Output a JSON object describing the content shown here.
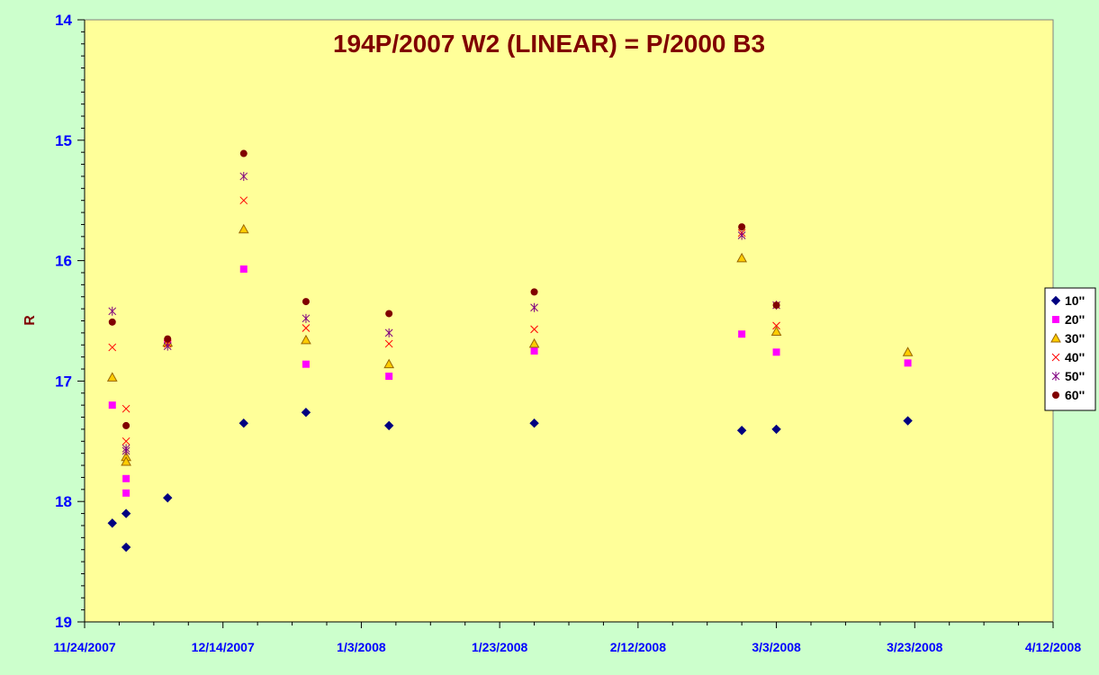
{
  "chart_data": {
    "type": "scatter",
    "title": "194P/2007 W2 (LINEAR) = P/2000 B3",
    "xlabel": "",
    "ylabel": "R",
    "x_ticks": [
      "11/24/2007",
      "12/14/2007",
      "1/3/2008",
      "1/23/2008",
      "2/12/2008",
      "3/3/2008",
      "3/23/2008",
      "4/12/2008"
    ],
    "xlim": [
      "2007-11-24",
      "2008-04-12"
    ],
    "ylim": [
      19,
      14
    ],
    "y_reversed": true,
    "y_ticks": [
      "14",
      "15",
      "16",
      "17",
      "18",
      "19"
    ],
    "grid": false,
    "legend_position": "right",
    "colors": {
      "page_background": "#ccffcc",
      "plot_background": "#ffff99",
      "title": "#800000",
      "tick_labels": "#0000ff"
    },
    "series": [
      {
        "name": "10''",
        "marker": "diamond",
        "color": "#000080",
        "points": [
          {
            "x": "2007-11-28",
            "y": 18.18
          },
          {
            "x": "2007-11-30",
            "y": 18.38
          },
          {
            "x": "2007-11-30",
            "y": 18.1
          },
          {
            "x": "2007-12-06",
            "y": 17.97
          },
          {
            "x": "2007-12-17",
            "y": 17.35
          },
          {
            "x": "2007-12-26",
            "y": 17.26
          },
          {
            "x": "2008-01-07",
            "y": 17.37
          },
          {
            "x": "2008-01-28",
            "y": 17.35
          },
          {
            "x": "2008-02-27",
            "y": 17.41
          },
          {
            "x": "2008-03-03",
            "y": 17.4
          },
          {
            "x": "2008-03-22",
            "y": 17.33
          }
        ]
      },
      {
        "name": "20''",
        "marker": "square",
        "color": "#ff00ff",
        "points": [
          {
            "x": "2007-11-28",
            "y": 17.2
          },
          {
            "x": "2007-11-30",
            "y": 17.81
          },
          {
            "x": "2007-11-30",
            "y": 17.93
          },
          {
            "x": "2007-12-06",
            "y": 16.68
          },
          {
            "x": "2007-12-17",
            "y": 16.07
          },
          {
            "x": "2007-12-26",
            "y": 16.86
          },
          {
            "x": "2008-01-07",
            "y": 16.96
          },
          {
            "x": "2008-01-28",
            "y": 16.75
          },
          {
            "x": "2008-02-27",
            "y": 16.61
          },
          {
            "x": "2008-03-03",
            "y": 16.76
          },
          {
            "x": "2008-03-22",
            "y": 16.85
          }
        ]
      },
      {
        "name": "30''",
        "marker": "triangle",
        "color": "#ffcc00",
        "points": [
          {
            "x": "2007-11-28",
            "y": 16.97
          },
          {
            "x": "2007-11-30",
            "y": 17.63
          },
          {
            "x": "2007-11-30",
            "y": 17.67
          },
          {
            "x": "2007-12-06",
            "y": 16.68
          },
          {
            "x": "2007-12-17",
            "y": 15.74
          },
          {
            "x": "2007-12-26",
            "y": 16.66
          },
          {
            "x": "2008-01-07",
            "y": 16.86
          },
          {
            "x": "2008-01-28",
            "y": 16.69
          },
          {
            "x": "2008-02-27",
            "y": 15.98
          },
          {
            "x": "2008-03-03",
            "y": 16.59
          },
          {
            "x": "2008-03-22",
            "y": 16.76
          }
        ]
      },
      {
        "name": "40''",
        "marker": "x",
        "color": "#ff0000",
        "points": [
          {
            "x": "2007-11-28",
            "y": 16.72
          },
          {
            "x": "2007-11-30",
            "y": 17.23
          },
          {
            "x": "2007-11-30",
            "y": 17.5
          },
          {
            "x": "2007-12-06",
            "y": 16.69
          },
          {
            "x": "2007-12-17",
            "y": 15.5
          },
          {
            "x": "2007-12-26",
            "y": 16.56
          },
          {
            "x": "2008-01-07",
            "y": 16.69
          },
          {
            "x": "2008-01-28",
            "y": 16.57
          },
          {
            "x": "2008-02-27",
            "y": 15.77
          },
          {
            "x": "2008-03-03",
            "y": 16.54
          }
        ]
      },
      {
        "name": "50''",
        "marker": "star",
        "color": "#800080",
        "points": [
          {
            "x": "2007-11-28",
            "y": 16.42
          },
          {
            "x": "2007-11-30",
            "y": 17.56
          },
          {
            "x": "2007-11-30",
            "y": 17.58
          },
          {
            "x": "2007-12-06",
            "y": 16.71
          },
          {
            "x": "2007-12-17",
            "y": 15.3
          },
          {
            "x": "2007-12-26",
            "y": 16.48
          },
          {
            "x": "2008-01-07",
            "y": 16.6
          },
          {
            "x": "2008-01-28",
            "y": 16.39
          },
          {
            "x": "2008-02-27",
            "y": 15.79
          },
          {
            "x": "2008-03-03",
            "y": 16.37
          }
        ]
      },
      {
        "name": "60''",
        "marker": "circle",
        "color": "#800000",
        "points": [
          {
            "x": "2007-11-28",
            "y": 16.51
          },
          {
            "x": "2007-11-30",
            "y": 17.37
          },
          {
            "x": "2007-12-06",
            "y": 16.65
          },
          {
            "x": "2007-12-17",
            "y": 15.11
          },
          {
            "x": "2007-12-26",
            "y": 16.34
          },
          {
            "x": "2008-01-07",
            "y": 16.44
          },
          {
            "x": "2008-01-28",
            "y": 16.26
          },
          {
            "x": "2008-02-27",
            "y": 15.72
          },
          {
            "x": "2008-03-03",
            "y": 16.37
          }
        ]
      }
    ]
  }
}
